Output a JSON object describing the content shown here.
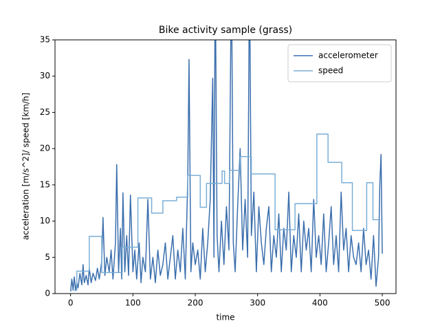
{
  "chart_data": {
    "type": "line",
    "title": "Bike activity sample (grass)",
    "x_label": "time",
    "y_label": "acceleration [m/s^2]/ speed [km/h]",
    "xlim": [
      -25,
      522
    ],
    "ylim": [
      0,
      35
    ],
    "xticks": [
      0,
      100,
      200,
      300,
      400,
      500
    ],
    "yticks": [
      0,
      5,
      10,
      15,
      20,
      25,
      30,
      35
    ],
    "legend": "upper right",
    "grid": false,
    "series": [
      {
        "name": "accelerometer",
        "color": "#3a6ead",
        "x": [
          0,
          2,
          4,
          6,
          8,
          10,
          12,
          15,
          18,
          20,
          22,
          25,
          28,
          30,
          33,
          36,
          40,
          43,
          46,
          50,
          52,
          55,
          58,
          62,
          65,
          68,
          72,
          74,
          77,
          80,
          82,
          84,
          87,
          90,
          93,
          96,
          100,
          103,
          106,
          110,
          113,
          116,
          120,
          124,
          128,
          132,
          136,
          140,
          144,
          148,
          152,
          156,
          160,
          164,
          168,
          172,
          176,
          180,
          184,
          188,
          190,
          193,
          196,
          200,
          204,
          208,
          212,
          216,
          220,
          224,
          228,
          230,
          232,
          235,
          238,
          242,
          246,
          250,
          254,
          258,
          261,
          264,
          268,
          272,
          276,
          280,
          284,
          287,
          290,
          294,
          298,
          302,
          306,
          310,
          314,
          318,
          322,
          326,
          330,
          334,
          338,
          342,
          346,
          350,
          354,
          358,
          362,
          366,
          370,
          374,
          378,
          382,
          386,
          390,
          394,
          398,
          402,
          406,
          410,
          414,
          418,
          422,
          426,
          430,
          434,
          438,
          442,
          446,
          450,
          454,
          458,
          462,
          466,
          470,
          474,
          478,
          482,
          486,
          490,
          494,
          496,
          498,
          500
        ],
        "values": [
          0.3,
          2,
          0.5,
          2.3,
          0.4,
          1.5,
          0.8,
          2.8,
          1.2,
          4,
          1.5,
          2.5,
          1.2,
          3.5,
          1.5,
          2.8,
          1.8,
          3.5,
          2,
          4.5,
          10.5,
          2.5,
          5,
          3,
          6,
          2,
          7,
          17.8,
          3,
          9,
          2,
          13.9,
          3,
          8,
          2.5,
          13.6,
          3,
          6,
          2,
          7,
          1.5,
          5,
          3,
          13,
          2,
          5,
          1.5,
          6,
          2.5,
          4,
          7,
          2,
          5,
          8,
          2,
          6,
          3,
          9,
          2,
          16,
          32.3,
          3,
          7,
          4,
          6,
          2,
          9,
          3,
          7,
          13,
          29.7,
          5,
          45,
          8,
          3,
          10,
          4,
          12,
          6,
          45,
          7,
          3,
          12,
          20,
          6,
          13,
          5,
          45,
          8,
          14,
          3,
          12,
          7,
          4,
          9,
          12,
          3,
          8,
          5,
          11,
          3,
          9,
          6,
          14,
          3,
          8,
          5,
          11,
          3,
          10,
          6,
          9,
          3,
          13,
          5,
          8,
          4,
          11,
          3,
          7,
          12,
          4,
          8,
          3,
          14,
          6,
          9,
          3,
          8,
          5,
          4,
          7,
          3,
          9,
          4,
          6,
          2,
          8,
          1,
          5,
          15,
          19.2,
          5.5
        ]
      },
      {
        "name": "speed",
        "color": "#7aaed6",
        "x": [
          0,
          10,
          10,
          30,
          30,
          50,
          50,
          83,
          83,
          108,
          108,
          130,
          130,
          148,
          148,
          170,
          170,
          188,
          188,
          208,
          208,
          218,
          218,
          243,
          243,
          247,
          247,
          255,
          255,
          272,
          272,
          290,
          290,
          328,
          328,
          360,
          360,
          395,
          395,
          413,
          413,
          435,
          435,
          452,
          452,
          475,
          475,
          485,
          485,
          497
        ],
        "values": [
          0.5,
          0.5,
          3.1,
          3.1,
          7.9,
          7.9,
          2.9,
          2.9,
          6.4,
          6.4,
          13.2,
          13.2,
          11.1,
          11.1,
          12.8,
          12.8,
          13.3,
          13.3,
          16.3,
          16.3,
          11.9,
          11.9,
          15.2,
          15.2,
          16.9,
          16.9,
          15.2,
          15.2,
          17,
          17,
          18.9,
          18.9,
          16.5,
          16.5,
          8.8,
          8.8,
          12.4,
          12.4,
          22,
          22,
          18.1,
          18.1,
          15.3,
          15.3,
          8.7,
          8.7,
          15.3,
          15.3,
          10.2,
          10.2
        ]
      }
    ]
  }
}
